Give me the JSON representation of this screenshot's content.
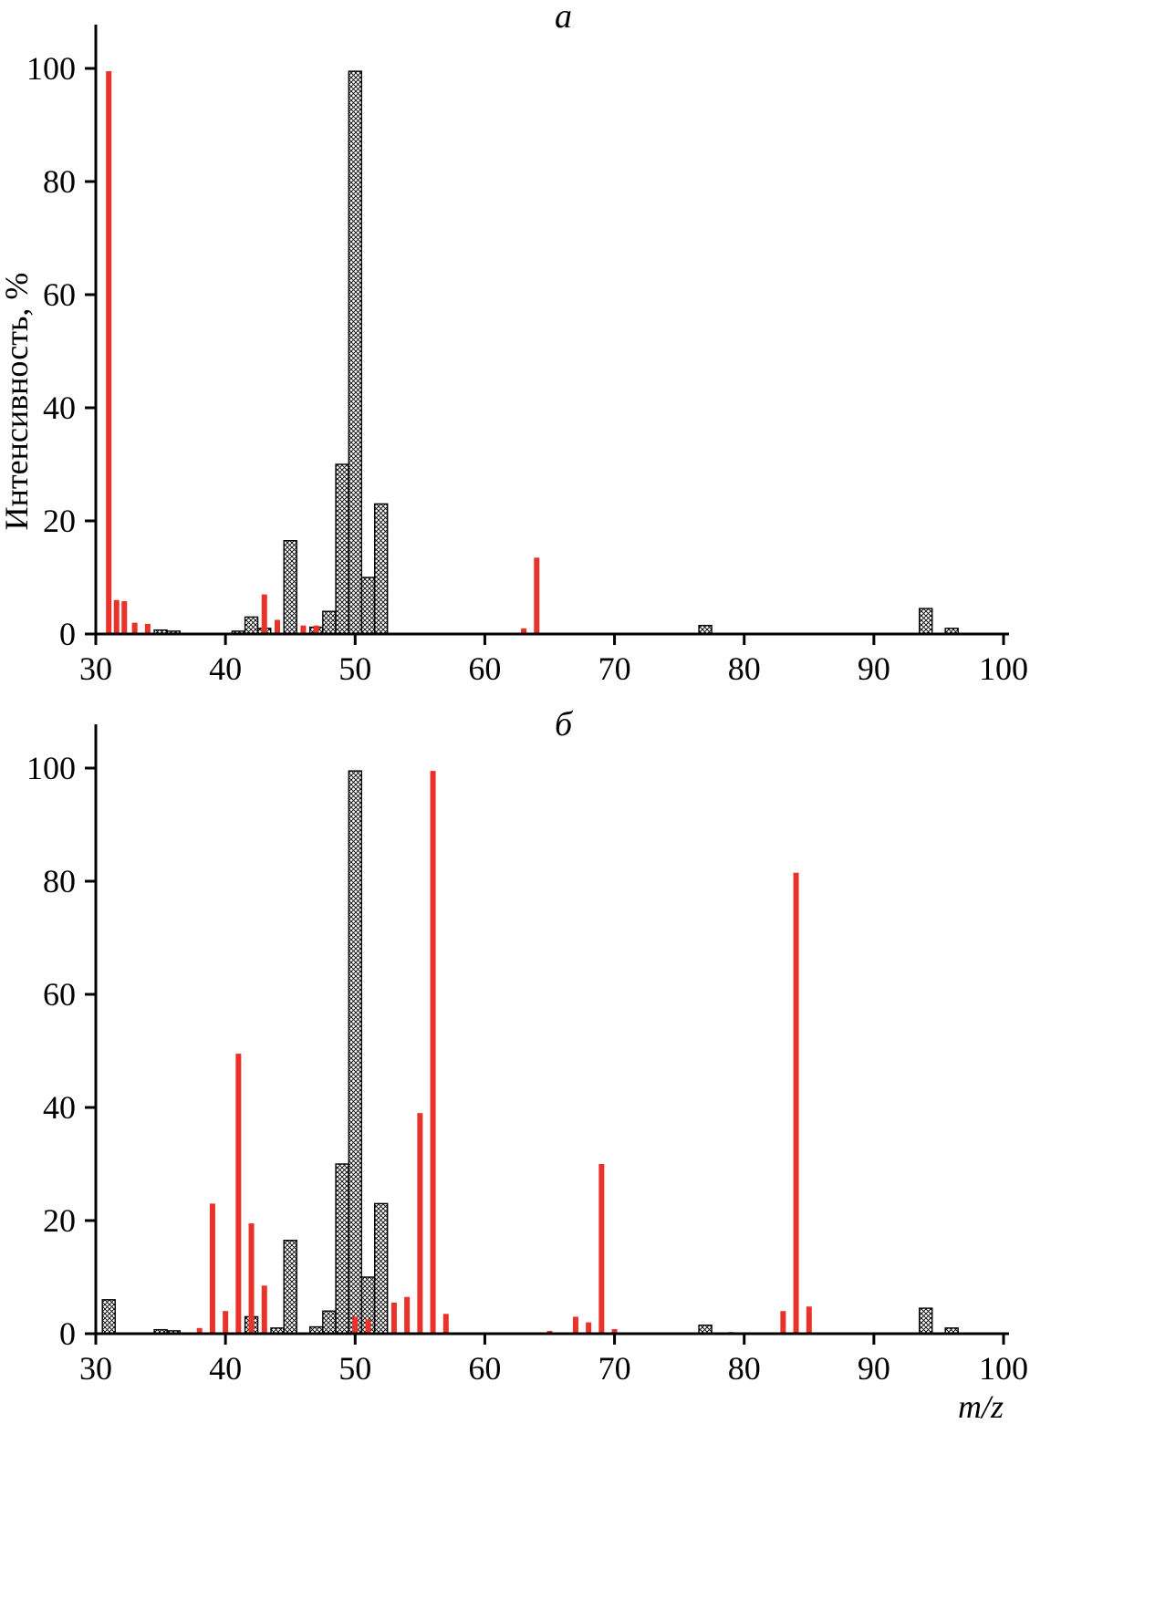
{
  "figure": {
    "background": "#ffffff",
    "accent_red": "#e8322a",
    "bar_outline": "#000000"
  },
  "chart_data": [
    {
      "type": "bar",
      "title": "a",
      "ylabel": "Интенсивность, %",
      "xlabel": "",
      "xlim": [
        30,
        100
      ],
      "ylim": [
        0,
        100
      ],
      "x_ticks": [
        30,
        40,
        50,
        60,
        70,
        80,
        90,
        100
      ],
      "y_ticks": [
        0,
        20,
        40,
        60,
        80,
        100
      ],
      "grid": false,
      "legend": "none",
      "series": [
        {
          "name": "spectrum-black-hatched",
          "style": "crosshatch",
          "color": "#000000",
          "points": [
            [
              35,
              0.7
            ],
            [
              36,
              0.5
            ],
            [
              41,
              0.5
            ],
            [
              42,
              3
            ],
            [
              43,
              1
            ],
            [
              45,
              16.5
            ],
            [
              47,
              1.2
            ],
            [
              48,
              4
            ],
            [
              49,
              30
            ],
            [
              50,
              99.5
            ],
            [
              51,
              10
            ],
            [
              52,
              23
            ],
            [
              77,
              1.5
            ],
            [
              94,
              4.5
            ],
            [
              96,
              1
            ]
          ]
        },
        {
          "name": "spectrum-red",
          "style": "solid",
          "color": "#e8322a",
          "points": [
            [
              31,
              99.5
            ],
            [
              31.6,
              6
            ],
            [
              32.2,
              5.8
            ],
            [
              33,
              2
            ],
            [
              34,
              1.8
            ],
            [
              43,
              7
            ],
            [
              44,
              2.5
            ],
            [
              46,
              1.5
            ],
            [
              47,
              1.5
            ],
            [
              63,
              1
            ],
            [
              64,
              13.5
            ]
          ]
        }
      ]
    },
    {
      "type": "bar",
      "title": "б",
      "ylabel": "",
      "xlabel": "m/z",
      "xlim": [
        30,
        100
      ],
      "ylim": [
        0,
        100
      ],
      "x_ticks": [
        30,
        40,
        50,
        60,
        70,
        80,
        90,
        100
      ],
      "y_ticks": [
        0,
        20,
        40,
        60,
        80,
        100
      ],
      "grid": false,
      "legend": "none",
      "series": [
        {
          "name": "spectrum-black-hatched",
          "style": "crosshatch",
          "color": "#000000",
          "points": [
            [
              31,
              6
            ],
            [
              35,
              0.7
            ],
            [
              36,
              0.5
            ],
            [
              42,
              3
            ],
            [
              44,
              1
            ],
            [
              45,
              16.5
            ],
            [
              47,
              1.2
            ],
            [
              48,
              4
            ],
            [
              49,
              30
            ],
            [
              50,
              99.5
            ],
            [
              51,
              10
            ],
            [
              52,
              23
            ],
            [
              77,
              1.5
            ],
            [
              94,
              4.5
            ],
            [
              96,
              1
            ]
          ]
        },
        {
          "name": "spectrum-red",
          "style": "solid",
          "color": "#e8322a",
          "points": [
            [
              38,
              1
            ],
            [
              39,
              23
            ],
            [
              40,
              4
            ],
            [
              41,
              49.5
            ],
            [
              42,
              19.5
            ],
            [
              43,
              8.5
            ],
            [
              50,
              3
            ],
            [
              51,
              2.5
            ],
            [
              53,
              5.5
            ],
            [
              54,
              6.5
            ],
            [
              55,
              39
            ],
            [
              56,
              99.5
            ],
            [
              57,
              3.5
            ],
            [
              65,
              0.5
            ],
            [
              67,
              3
            ],
            [
              68,
              2
            ],
            [
              69,
              30
            ],
            [
              70,
              0.8
            ],
            [
              79,
              0.3
            ],
            [
              83,
              4
            ],
            [
              84,
              81.5
            ],
            [
              85,
              4.8
            ]
          ]
        }
      ]
    }
  ]
}
